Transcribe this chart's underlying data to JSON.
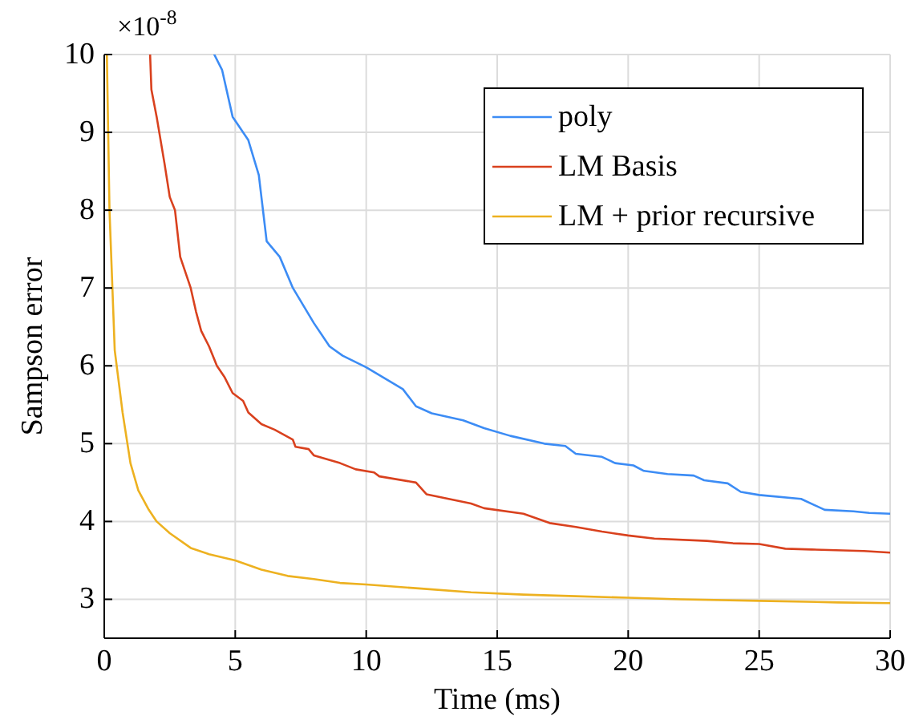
{
  "chart_data": {
    "type": "line",
    "xlabel": "Time (ms)",
    "ylabel": "Sampson error",
    "annotations": [
      "×10$^{-8}$"
    ],
    "xlim": [
      0,
      30
    ],
    "ylim": [
      2.5,
      10
    ],
    "xticks": [
      0,
      5,
      10,
      15,
      20,
      25,
      30
    ],
    "yticks": [
      3,
      4,
      5,
      6,
      7,
      8,
      9,
      10
    ],
    "grid": true,
    "legend": "top right",
    "line_style": "solid",
    "marker": "none",
    "series": [
      {
        "name": "poly",
        "color": "#3c8cf5",
        "x": [
          4.2,
          4.5,
          4.9,
          5.5,
          5.9,
          6.2,
          6.7,
          7.2,
          8,
          8.6,
          9.1,
          10,
          10.9,
          11.4,
          11.9,
          12.5,
          13.7,
          14.5,
          15.5,
          16.8,
          17.6,
          18,
          19,
          19.5,
          20.2,
          20.6,
          21.5,
          22.5,
          22.9,
          23.8,
          24.3,
          25,
          26.6,
          27.5,
          28.6,
          29.2,
          30
        ],
        "values": [
          10,
          9.8,
          9.2,
          8.9,
          8.45,
          7.6,
          7.4,
          7.0,
          6.55,
          6.25,
          6.13,
          5.98,
          5.8,
          5.7,
          5.48,
          5.39,
          5.3,
          5.2,
          5.1,
          5.0,
          4.97,
          4.87,
          4.83,
          4.75,
          4.72,
          4.65,
          4.61,
          4.59,
          4.53,
          4.49,
          4.38,
          4.34,
          4.29,
          4.15,
          4.13,
          4.11,
          4.1
        ]
      },
      {
        "name": "LM Basis",
        "color": "#d9411e",
        "x": [
          1.75,
          1.8,
          2.0,
          2.3,
          2.5,
          2.7,
          2.9,
          3.3,
          3.5,
          3.7,
          4.0,
          4.3,
          4.6,
          4.9,
          5.3,
          5.5,
          6.0,
          6.5,
          7.2,
          7.3,
          7.8,
          8.0,
          9.0,
          9.6,
          10.3,
          10.5,
          11.9,
          12.3,
          13,
          14,
          14.5,
          16,
          17,
          18,
          19,
          20,
          21,
          23,
          24,
          25,
          26,
          27,
          29,
          30
        ],
        "values": [
          10,
          9.55,
          9.2,
          8.6,
          8.17,
          8.0,
          7.4,
          7.0,
          6.7,
          6.45,
          6.25,
          6.0,
          5.85,
          5.65,
          5.55,
          5.4,
          5.25,
          5.18,
          5.05,
          4.96,
          4.93,
          4.85,
          4.75,
          4.67,
          4.63,
          4.58,
          4.5,
          4.35,
          4.3,
          4.23,
          4.17,
          4.1,
          3.98,
          3.93,
          3.87,
          3.82,
          3.78,
          3.75,
          3.72,
          3.71,
          3.65,
          3.64,
          3.62,
          3.6
        ]
      },
      {
        "name": "LM + prior recursive",
        "color": "#edb120",
        "x": [
          0.1,
          0.2,
          0.4,
          0.7,
          1,
          1.3,
          1.7,
          2,
          2.5,
          3.3,
          4,
          5,
          6,
          7,
          8,
          9,
          10,
          12,
          14,
          16,
          18,
          20,
          22,
          25,
          28,
          30
        ],
        "values": [
          10,
          8.0,
          6.2,
          5.4,
          4.75,
          4.4,
          4.15,
          4.0,
          3.85,
          3.66,
          3.58,
          3.5,
          3.38,
          3.3,
          3.26,
          3.21,
          3.19,
          3.14,
          3.09,
          3.06,
          3.04,
          3.02,
          3.0,
          2.98,
          2.96,
          2.95
        ]
      }
    ]
  }
}
